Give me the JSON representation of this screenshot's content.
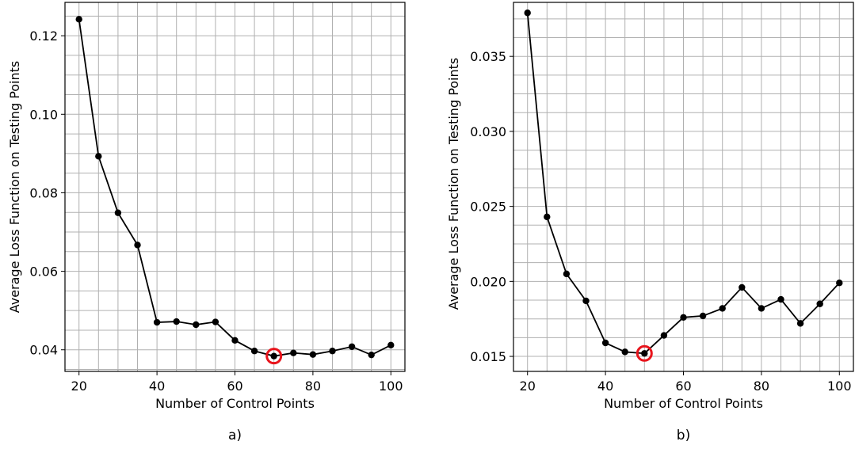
{
  "chart_data": [
    {
      "type": "line",
      "panel_label": "a)",
      "xlabel": "Number of Control Points",
      "ylabel": "Average Loss Function on Testing Points",
      "xlim": [
        16.4,
        103.6
      ],
      "ylim": [
        0.0345,
        0.1285
      ],
      "xticks": [
        20,
        40,
        60,
        80,
        100
      ],
      "xtick_labels": [
        "20",
        "40",
        "60",
        "80",
        "100"
      ],
      "yticks": [
        0.04,
        0.06,
        0.08,
        0.1,
        0.12
      ],
      "ytick_labels": [
        "0.04",
        "0.06",
        "0.08",
        "0.10",
        "0.12"
      ],
      "grid": true,
      "minor_grid": true,
      "line_color": "#000000",
      "highlight_color": "#e8141c",
      "highlight_x": 70,
      "series": [
        {
          "x": [
            20,
            25,
            30,
            35,
            40,
            45,
            50,
            55,
            60,
            65,
            70,
            75,
            80,
            85,
            90,
            95,
            100
          ],
          "values": [
            0.1242,
            0.0893,
            0.0749,
            0.0667,
            0.047,
            0.0472,
            0.0464,
            0.0471,
            0.0424,
            0.0397,
            0.0384,
            0.0392,
            0.0388,
            0.0397,
            0.0408,
            0.0387,
            0.0412
          ]
        }
      ]
    },
    {
      "type": "line",
      "panel_label": "b)",
      "xlabel": "Number of Control Points",
      "ylabel": "Average Loss Function on Testing Points",
      "xlim": [
        16.4,
        103.6
      ],
      "ylim": [
        0.014,
        0.0386
      ],
      "xticks": [
        20,
        40,
        60,
        80,
        100
      ],
      "xtick_labels": [
        "20",
        "40",
        "60",
        "80",
        "100"
      ],
      "yticks": [
        0.015,
        0.02,
        0.025,
        0.03,
        0.035
      ],
      "ytick_labels": [
        "0.015",
        "0.020",
        "0.025",
        "0.030",
        "0.035"
      ],
      "grid": true,
      "minor_grid": true,
      "line_color": "#000000",
      "highlight_color": "#e8141c",
      "highlight_x": 50,
      "series": [
        {
          "x": [
            20,
            25,
            30,
            35,
            40,
            45,
            50,
            55,
            60,
            65,
            70,
            75,
            80,
            85,
            90,
            95,
            100
          ],
          "values": [
            0.0379,
            0.0243,
            0.0205,
            0.0187,
            0.0159,
            0.0153,
            0.0152,
            0.0164,
            0.0176,
            0.0177,
            0.0182,
            0.0196,
            0.0182,
            0.0188,
            0.0172,
            0.0185,
            0.0199
          ]
        }
      ]
    }
  ]
}
